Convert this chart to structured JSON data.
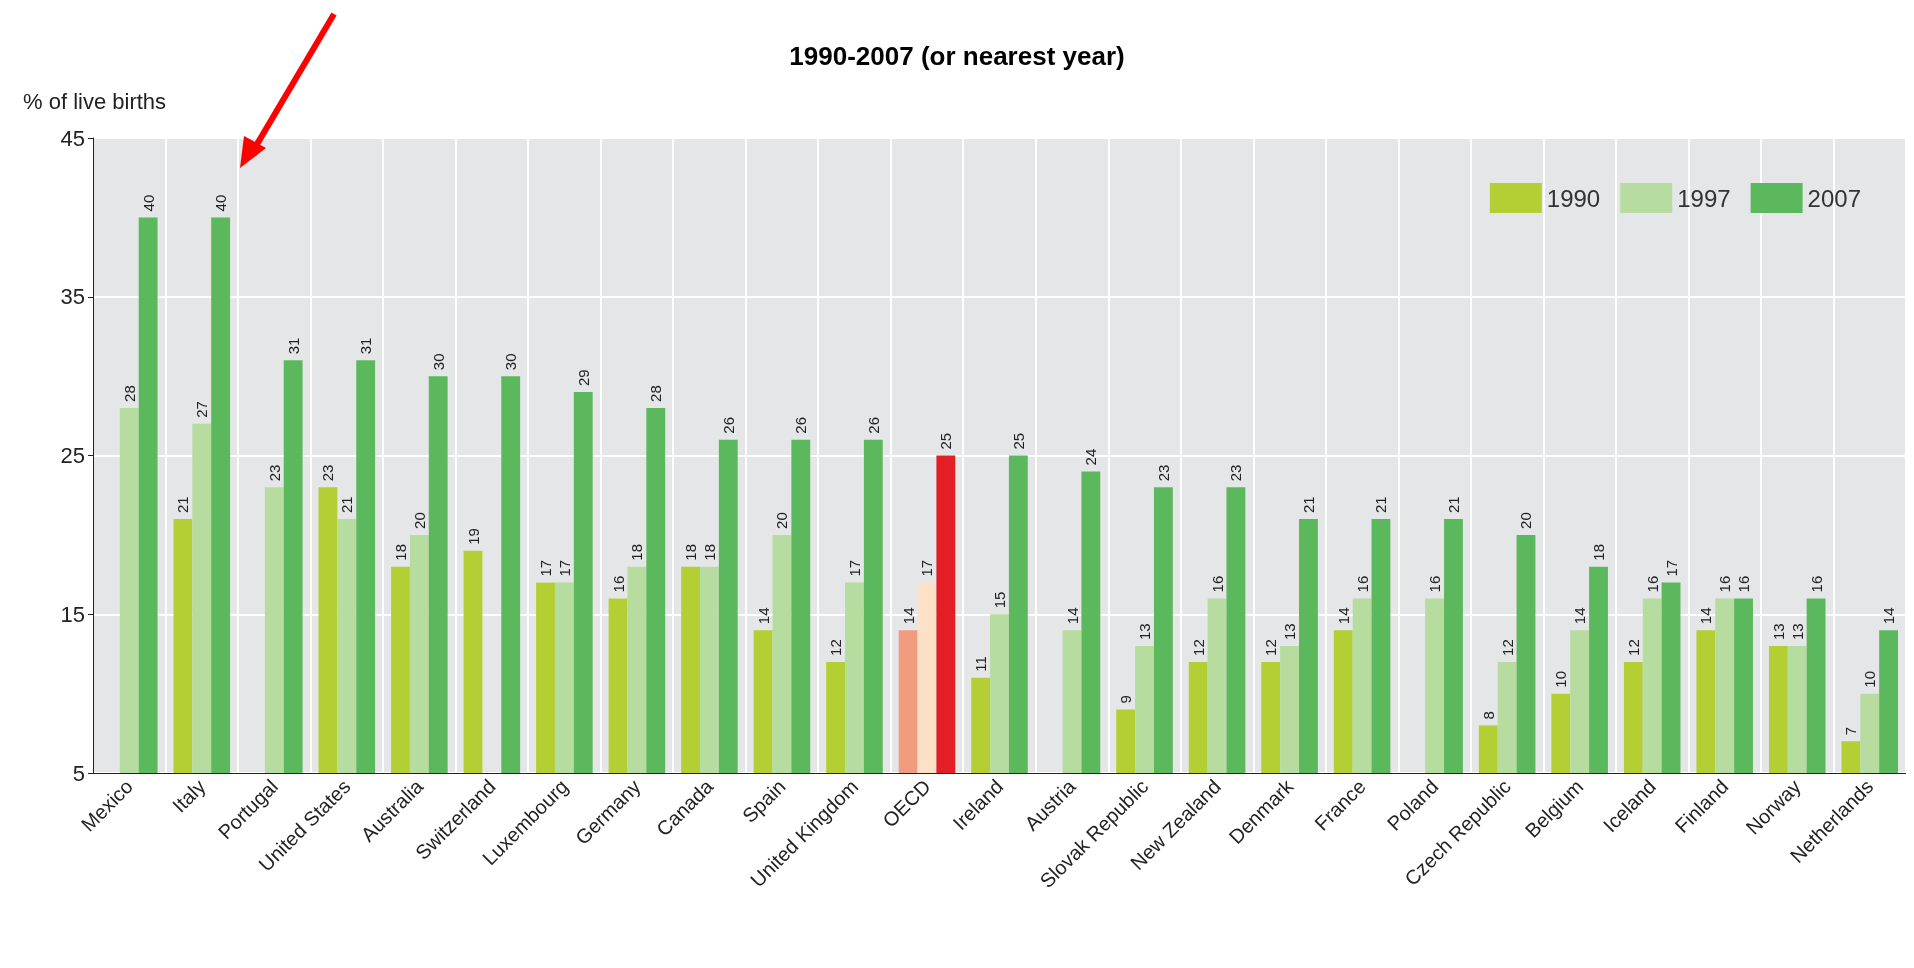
{
  "chart_data": {
    "type": "bar",
    "title": "1990-2007 (or nearest year)",
    "ylabel": "% of live births",
    "categories": [
      "Mexico",
      "Italy",
      "Portugal",
      "United States",
      "Australia",
      "Switzerland",
      "Luxembourg",
      "Germany",
      "Canada",
      "Spain",
      "United Kingdom",
      "OECD",
      "Ireland",
      "Austria",
      "Slovak Republic",
      "New Zealand",
      "Denmark",
      "France",
      "Poland",
      "Czech Republic",
      "Belgium",
      "Iceland",
      "Finland",
      "Norway",
      "Netherlands"
    ],
    "series": [
      {
        "name": "1990",
        "color": "#b3cf34",
        "colors": [
          "#b3cf34",
          "#b3cf34",
          "#b3cf34",
          "#b3cf34",
          "#b3cf34",
          "#b3cf34",
          "#b3cf34",
          "#b3cf34",
          "#b3cf34",
          "#b3cf34",
          "#b3cf34",
          "#f29b7e",
          "#b3cf34",
          "#b3cf34",
          "#b3cf34",
          "#b3cf34",
          "#b3cf34",
          "#b3cf34",
          "#b3cf34",
          "#b3cf34",
          "#b3cf34",
          "#b3cf34",
          "#b3cf34",
          "#b3cf34",
          "#b3cf34"
        ],
        "values": [
          null,
          21,
          null,
          23,
          18,
          19,
          17,
          16,
          18,
          14,
          12,
          14,
          11,
          null,
          9,
          12,
          12,
          14,
          null,
          8,
          10,
          12,
          14,
          13,
          7
        ]
      },
      {
        "name": "1997",
        "color": "#b7dca0",
        "colors": [
          "#b7dca0",
          "#b7dca0",
          "#b7dca0",
          "#b7dca0",
          "#b7dca0",
          "#b7dca0",
          "#b7dca0",
          "#b7dca0",
          "#b7dca0",
          "#b7dca0",
          "#b7dca0",
          "#fde0c8",
          "#b7dca0",
          "#b7dca0",
          "#b7dca0",
          "#b7dca0",
          "#b7dca0",
          "#b7dca0",
          "#b7dca0",
          "#b7dca0",
          "#b7dca0",
          "#b7dca0",
          "#b7dca0",
          "#b7dca0",
          "#b7dca0"
        ],
        "values": [
          28,
          27,
          23,
          21,
          20,
          null,
          17,
          18,
          18,
          20,
          17,
          17,
          15,
          14,
          13,
          16,
          13,
          16,
          16,
          12,
          14,
          16,
          16,
          13,
          10
        ]
      },
      {
        "name": "2007",
        "color": "#5cb85c",
        "colors": [
          "#5cb85c",
          "#5cb85c",
          "#5cb85c",
          "#5cb85c",
          "#5cb85c",
          "#5cb85c",
          "#5cb85c",
          "#5cb85c",
          "#5cb85c",
          "#5cb85c",
          "#5cb85c",
          "#e31e24",
          "#5cb85c",
          "#5cb85c",
          "#5cb85c",
          "#5cb85c",
          "#5cb85c",
          "#5cb85c",
          "#5cb85c",
          "#5cb85c",
          "#5cb85c",
          "#5cb85c",
          "#5cb85c",
          "#5cb85c",
          "#5cb85c"
        ],
        "values": [
          40,
          40,
          31,
          31,
          30,
          30,
          29,
          28,
          26,
          26,
          26,
          25,
          25,
          24,
          23,
          23,
          21,
          21,
          21,
          20,
          18,
          17,
          16,
          16,
          14
        ]
      }
    ],
    "ylim": [
      5,
      45
    ],
    "yticks": [
      5,
      15,
      25,
      35,
      45
    ],
    "grid": true,
    "legend": "top right",
    "data_labels": true
  }
}
